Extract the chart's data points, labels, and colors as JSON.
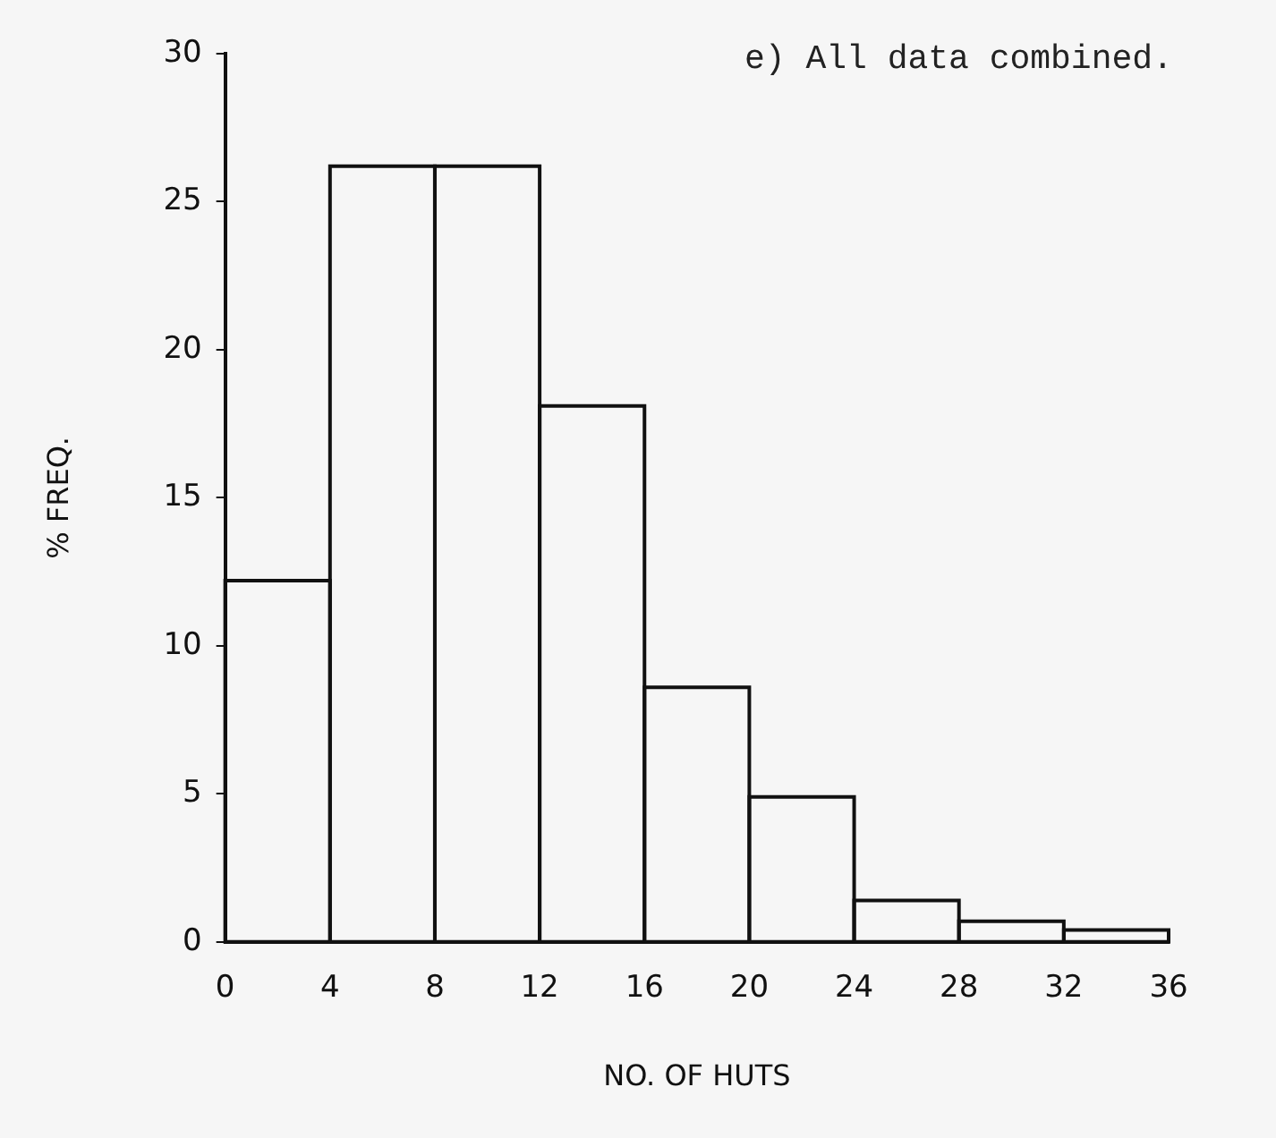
{
  "chart_data": {
    "type": "histogram",
    "xlabel": "NO. OF HUTS",
    "ylabel": "% FREQ.",
    "annotations": [
      "e) All data combined."
    ],
    "bins": [
      0,
      4,
      8,
      12,
      16,
      20,
      24,
      28,
      32,
      36
    ],
    "values": [
      12.2,
      26.2,
      26.2,
      18.1,
      8.6,
      4.9,
      1.4,
      0.7,
      0.4
    ],
    "color": "#111111",
    "xlim": [
      0,
      36
    ],
    "xticks": [
      0,
      4,
      8,
      12,
      16,
      20,
      24,
      28,
      32,
      36
    ],
    "ylim": [
      0,
      30
    ],
    "yticks": [
      0,
      5,
      10,
      15,
      20,
      25,
      30
    ],
    "grid": false,
    "legend": false
  }
}
